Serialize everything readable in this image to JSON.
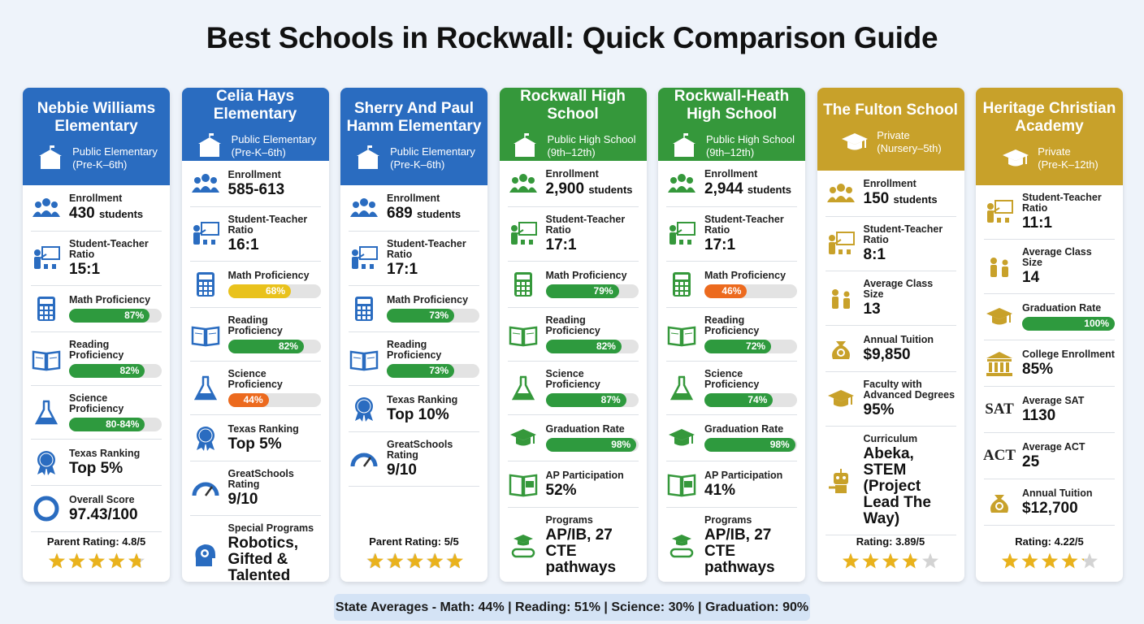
{
  "title": "Best Schools in Rockwall: Quick Comparison Guide",
  "schools": [
    {
      "name": "Nebbie Williams Elementary",
      "type": "Public Elementary",
      "grades": "(Pre-K–6th)",
      "color": "#2a6cc0",
      "icon": "school",
      "rows": [
        {
          "icon": "people",
          "label": "Enrollment",
          "value": "430",
          "unit": "students"
        },
        {
          "icon": "teacher",
          "label": "Student-Teacher Ratio",
          "value": "15:1"
        },
        {
          "icon": "calc",
          "label": "Math Proficiency",
          "bar": 87,
          "bar_label": "87%",
          "bar_color": "#2e9a3e"
        },
        {
          "icon": "book",
          "label": "Reading Proficiency",
          "bar": 82,
          "bar_label": "82%",
          "bar_color": "#2e9a3e"
        },
        {
          "icon": "flask",
          "label": "Science Proficiency",
          "bar": 82,
          "bar_label": "80-84%",
          "bar_color": "#2e9a3e"
        },
        {
          "icon": "badge",
          "label": "Texas Ranking",
          "value": "Top 5%"
        },
        {
          "icon": "ring",
          "label": "Overall Score",
          "value": "97.43/100"
        }
      ],
      "rating_text": "Parent Rating: 4.8/5",
      "rating": 4.8
    },
    {
      "name": "Celia Hays Elementary",
      "type": "Public Elementary",
      "grades": "(Pre-K–6th)",
      "color": "#2a6cc0",
      "icon": "school",
      "rows": [
        {
          "icon": "people",
          "label": "Enrollment",
          "value": "585-613"
        },
        {
          "icon": "teacher",
          "label": "Student-Teacher Ratio",
          "value": "16:1"
        },
        {
          "icon": "calc",
          "label": "Math Proficiency",
          "bar": 68,
          "bar_label": "68%",
          "bar_color": "#e9c21c"
        },
        {
          "icon": "book",
          "label": "Reading Proficiency",
          "bar": 82,
          "bar_label": "82%",
          "bar_color": "#2e9a3e"
        },
        {
          "icon": "flask",
          "label": "Science Proficiency",
          "bar": 44,
          "bar_label": "44%",
          "bar_color": "#ec6a1e"
        },
        {
          "icon": "badge",
          "label": "Texas Ranking",
          "value": "Top 5%"
        },
        {
          "icon": "gauge",
          "label": "GreatSchools Rating",
          "value": "9/10"
        },
        {
          "icon": "brain",
          "label": "Special Programs",
          "value": "Robotics, Gifted & Talented"
        }
      ]
    },
    {
      "name": "Sherry And Paul Hamm Elementary",
      "type": "Public Elementary",
      "grades": "(Pre-K–6th)",
      "color": "#2a6cc0",
      "icon": "school",
      "rows": [
        {
          "icon": "people",
          "label": "Enrollment",
          "value": "689",
          "unit": "students"
        },
        {
          "icon": "teacher",
          "label": "Student-Teacher Ratio",
          "value": "17:1"
        },
        {
          "icon": "calc",
          "label": "Math Proficiency",
          "bar": 73,
          "bar_label": "73%",
          "bar_color": "#2e9a3e"
        },
        {
          "icon": "book",
          "label": "Reading Proficiency",
          "bar": 73,
          "bar_label": "73%",
          "bar_color": "#2e9a3e"
        },
        {
          "icon": "badge",
          "label": "Texas Ranking",
          "value": "Top 10%"
        },
        {
          "icon": "gauge",
          "label": "GreatSchools Rating",
          "value": "9/10"
        }
      ],
      "rating_text": "Parent Rating: 5/5",
      "rating": 5
    },
    {
      "name": "Rockwall High School",
      "type": "Public High School",
      "grades": "(9th–12th)",
      "color": "#35983b",
      "icon": "school",
      "rows": [
        {
          "icon": "people",
          "label": "Enrollment",
          "value": "2,900",
          "unit": "students"
        },
        {
          "icon": "teacher",
          "label": "Student-Teacher Ratio",
          "value": "17:1"
        },
        {
          "icon": "calc",
          "label": "Math Proficiency",
          "bar": 79,
          "bar_label": "79%",
          "bar_color": "#2e9a3e"
        },
        {
          "icon": "book",
          "label": "Reading Proficiency",
          "bar": 82,
          "bar_label": "82%",
          "bar_color": "#2e9a3e"
        },
        {
          "icon": "flask",
          "label": "Science Proficiency",
          "bar": 87,
          "bar_label": "87%",
          "bar_color": "#2e9a3e"
        },
        {
          "icon": "cap",
          "label": "Graduation Rate",
          "bar": 98,
          "bar_label": "98%",
          "bar_color": "#2e9a3e"
        },
        {
          "icon": "ap",
          "label": "AP Participation",
          "value": "52%"
        },
        {
          "icon": "programs",
          "label": "Programs",
          "value": "AP/IB, 27 CTE pathways"
        }
      ]
    },
    {
      "name": "Rockwall-Heath High School",
      "type": "Public High School",
      "grades": "(9th–12th)",
      "color": "#35983b",
      "icon": "school",
      "rows": [
        {
          "icon": "people",
          "label": "Enrollment",
          "value": "2,944",
          "unit": "students"
        },
        {
          "icon": "teacher",
          "label": "Student-Teacher Ratio",
          "value": "17:1"
        },
        {
          "icon": "calc",
          "label": "Math Proficiency",
          "bar": 46,
          "bar_label": "46%",
          "bar_color": "#ec6a1e"
        },
        {
          "icon": "book",
          "label": "Reading Proficiency",
          "bar": 72,
          "bar_label": "72%",
          "bar_color": "#2e9a3e"
        },
        {
          "icon": "flask",
          "label": "Science Proficiency",
          "bar": 74,
          "bar_label": "74%",
          "bar_color": "#2e9a3e"
        },
        {
          "icon": "cap",
          "label": "Graduation Rate",
          "bar": 98,
          "bar_label": "98%",
          "bar_color": "#2e9a3e"
        },
        {
          "icon": "ap",
          "label": "AP Participation",
          "value": "41%"
        },
        {
          "icon": "programs",
          "label": "Programs",
          "value": "AP/IB, 27 CTE pathways"
        }
      ]
    },
    {
      "name": "The Fulton School",
      "type": "Private",
      "grades": "(Nursery–5th)",
      "color": "#c8a12a",
      "icon": "cap",
      "rows": [
        {
          "icon": "people",
          "label": "Enrollment",
          "value": "150",
          "unit": "students"
        },
        {
          "icon": "teacher",
          "label": "Student-Teacher Ratio",
          "value": "8:1"
        },
        {
          "icon": "small",
          "label": "Average Class Size",
          "value": "13"
        },
        {
          "icon": "coins",
          "label": "Annual Tuition",
          "value": "$9,850"
        },
        {
          "icon": "cap",
          "label": "Faculty with Advanced Degrees",
          "value": "95%"
        },
        {
          "icon": "robot",
          "label": "Curriculum",
          "value": "Abeka, STEM (Project Lead The Way)"
        }
      ],
      "rating_text": "Rating: 3.89/5",
      "rating": 3.89
    },
    {
      "name": "Heritage Christian Academy",
      "type": "Private",
      "grades": "(Pre-K–12th)",
      "color": "#c8a12a",
      "icon": "cap",
      "rows": [
        {
          "icon": "teacher",
          "label": "Student-Teacher Ratio",
          "value": "11:1"
        },
        {
          "icon": "small",
          "label": "Average Class Size",
          "value": "14"
        },
        {
          "icon": "cap",
          "label": "Graduation Rate",
          "bar": 100,
          "bar_label": "100%",
          "bar_color": "#2e9a3e"
        },
        {
          "icon": "building",
          "label": "College Enrollment",
          "value": "85%"
        },
        {
          "icon_text": "SAT",
          "label": "Average SAT",
          "value": "1130"
        },
        {
          "icon_text": "ACT",
          "label": "Average ACT",
          "value": "25"
        },
        {
          "icon": "coins",
          "label": "Annual Tuition",
          "value": "$12,700"
        }
      ],
      "rating_text": "Rating: 4.22/5",
      "rating": 4.22
    }
  ],
  "footer": "State Averages - Math: 44% | Reading: 51% | Science: 30% | Graduation: 90%"
}
